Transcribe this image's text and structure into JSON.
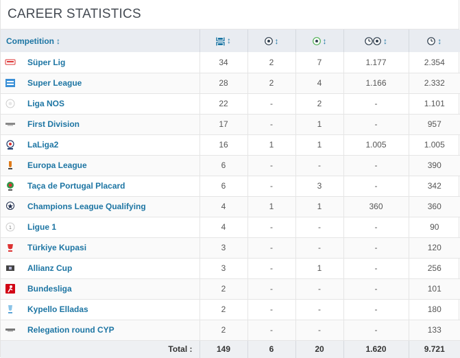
{
  "title": "CAREER STATISTICS",
  "headers": {
    "competition": "Competition",
    "sort_glyph": "↕",
    "icons": [
      "appearances-icon",
      "goals-icon",
      "assists-icon",
      "minutes-per-goal-icon",
      "minutes-played-icon"
    ]
  },
  "rows": [
    {
      "name": "Süper Lig",
      "logo": "super-lig-logo",
      "apps": "34",
      "goals": "2",
      "assists": "7",
      "mpg": "1.177",
      "mins": "2.354"
    },
    {
      "name": "Super League",
      "logo": "super-league-logo",
      "apps": "28",
      "goals": "2",
      "assists": "4",
      "mpg": "1.166",
      "mins": "2.332"
    },
    {
      "name": "Liga NOS",
      "logo": "liga-nos-logo",
      "apps": "22",
      "goals": "-",
      "assists": "2",
      "mpg": "-",
      "mins": "1.101"
    },
    {
      "name": "First Division",
      "logo": "first-division-logo",
      "apps": "17",
      "goals": "-",
      "assists": "1",
      "mpg": "-",
      "mins": "957"
    },
    {
      "name": "LaLiga2",
      "logo": "laliga2-logo",
      "apps": "16",
      "goals": "1",
      "assists": "1",
      "mpg": "1.005",
      "mins": "1.005"
    },
    {
      "name": "Europa League",
      "logo": "europa-league-logo",
      "apps": "6",
      "goals": "-",
      "assists": "-",
      "mpg": "-",
      "mins": "390"
    },
    {
      "name": "Taça de Portugal Placard",
      "logo": "taca-portugal-logo",
      "apps": "6",
      "goals": "-",
      "assists": "3",
      "mpg": "-",
      "mins": "342"
    },
    {
      "name": "Champions League Qualifying",
      "logo": "champions-league-logo",
      "apps": "4",
      "goals": "1",
      "assists": "1",
      "mpg": "360",
      "mins": "360"
    },
    {
      "name": "Ligue 1",
      "logo": "ligue-1-logo",
      "apps": "4",
      "goals": "-",
      "assists": "-",
      "mpg": "-",
      "mins": "90"
    },
    {
      "name": "Türkiye Kupasi",
      "logo": "turkiye-kupasi-logo",
      "apps": "3",
      "goals": "-",
      "assists": "-",
      "mpg": "-",
      "mins": "120"
    },
    {
      "name": "Allianz Cup",
      "logo": "allianz-cup-logo",
      "apps": "3",
      "goals": "-",
      "assists": "1",
      "mpg": "-",
      "mins": "256"
    },
    {
      "name": "Bundesliga",
      "logo": "bundesliga-logo",
      "apps": "2",
      "goals": "-",
      "assists": "-",
      "mpg": "-",
      "mins": "101"
    },
    {
      "name": "Kypello Elladas",
      "logo": "kypello-elladas-logo",
      "apps": "2",
      "goals": "-",
      "assists": "-",
      "mpg": "-",
      "mins": "180"
    },
    {
      "name": "Relegation round CYP",
      "logo": "relegation-cyp-logo",
      "apps": "2",
      "goals": "-",
      "assists": "-",
      "mpg": "-",
      "mins": "133"
    }
  ],
  "total": {
    "label": "Total :",
    "apps": "149",
    "goals": "6",
    "assists": "20",
    "mpg": "1.620",
    "mins": "9.721"
  },
  "colors": {
    "link": "#1d75a3",
    "header_bg": "#e9ecf1",
    "assist_green": "#4caf50"
  }
}
